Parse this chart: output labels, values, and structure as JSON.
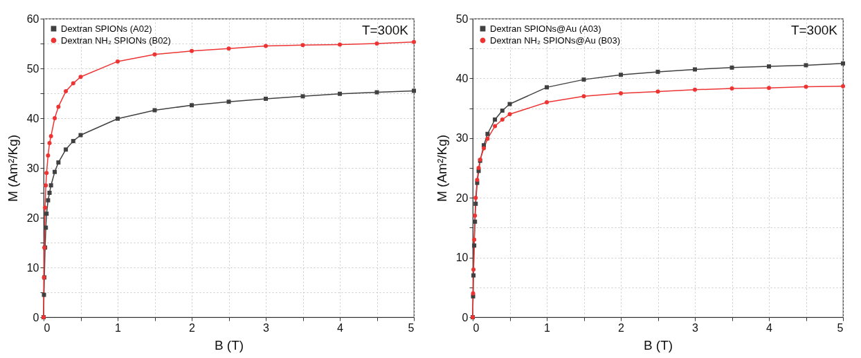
{
  "chart_data": [
    {
      "type": "line",
      "xlabel": "B (T)",
      "ylabel": "M (Am²/Kg)",
      "annotations": [
        "T=300K"
      ],
      "legend": "top left",
      "grid": true,
      "line_style": "solid",
      "xlim": [
        0,
        5
      ],
      "xticks": [
        0,
        {
          "value": 0.5,
          "label": null
        },
        1,
        {
          "value": 1.5,
          "label": null
        },
        2,
        {
          "value": 2.5,
          "label": null
        },
        3,
        {
          "value": 3.5,
          "label": null
        },
        4,
        {
          "value": 4.5,
          "label": null
        },
        5
      ],
      "ylim": [
        0,
        60
      ],
      "yticks": [
        0,
        {
          "value": 5,
          "label": null
        },
        10,
        {
          "value": 15,
          "label": null
        },
        20,
        {
          "value": 25,
          "label": null
        },
        30,
        {
          "value": 35,
          "label": null
        },
        40,
        {
          "value": 45,
          "label": null
        },
        50,
        {
          "value": 55,
          "label": null
        },
        60
      ],
      "x": [
        0,
        0.005,
        0.01,
        0.02,
        0.03,
        0.04,
        0.06,
        0.08,
        0.1,
        0.15,
        0.2,
        0.3,
        0.4,
        0.5,
        1,
        1.5,
        2,
        2.5,
        3,
        3.5,
        4,
        4.5,
        5
      ],
      "series": [
        {
          "name": "Dextran SPIONs (A02)",
          "color": "#404040",
          "marker": "square",
          "values": [
            0,
            4.5,
            8,
            14,
            18,
            20.8,
            23.5,
            25,
            26.5,
            29.2,
            31.1,
            33.7,
            35.4,
            36.6,
            39.9,
            41.6,
            42.6,
            43.3,
            43.9,
            44.4,
            44.9,
            45.2,
            45.5
          ]
        },
        {
          "name": "Dextran NH₂ SPIONs (B02)",
          "color": "#ee3333",
          "marker": "circle",
          "values": [
            0,
            8,
            14,
            22,
            26.5,
            29,
            32.5,
            35,
            36.4,
            40,
            42.3,
            45.4,
            47,
            48.3,
            51.4,
            52.8,
            53.5,
            54,
            54.5,
            54.7,
            54.8,
            55,
            55.3
          ]
        }
      ]
    },
    {
      "type": "line",
      "xlabel": "B (T)",
      "ylabel": "M (Am²/Kg)",
      "annotations": [
        "T=300K"
      ],
      "legend": "top left",
      "grid": true,
      "line_style": "solid",
      "xlim": [
        0,
        5
      ],
      "xticks": [
        0,
        {
          "value": 0.5,
          "label": null
        },
        1,
        {
          "value": 1.5,
          "label": null
        },
        2,
        {
          "value": 2.5,
          "label": null
        },
        3,
        {
          "value": 3.5,
          "label": null
        },
        4,
        {
          "value": 4.5,
          "label": null
        },
        5
      ],
      "ylim": [
        0,
        50
      ],
      "yticks": [
        0,
        {
          "value": 5,
          "label": null
        },
        10,
        {
          "value": 15,
          "label": null
        },
        20,
        {
          "value": 25,
          "label": null
        },
        30,
        {
          "value": 35,
          "label": null
        },
        40,
        {
          "value": 45,
          "label": null
        },
        50
      ],
      "x": [
        0,
        0.005,
        0.01,
        0.02,
        0.03,
        0.04,
        0.06,
        0.08,
        0.1,
        0.15,
        0.2,
        0.3,
        0.4,
        0.5,
        1,
        1.5,
        2,
        2.5,
        3,
        3.5,
        4,
        4.5,
        5
      ],
      "series": [
        {
          "name": "Dextran SPIONs@Au (A03)",
          "color": "#404040",
          "marker": "square",
          "values": [
            0,
            3.5,
            7,
            12,
            16,
            19,
            22.5,
            24.5,
            26.2,
            28.8,
            30.7,
            33.1,
            34.6,
            35.7,
            38.5,
            39.8,
            40.6,
            41.1,
            41.5,
            41.8,
            42,
            42.2,
            42.5
          ]
        },
        {
          "name": "Dextran NH₂ SPIONs@Au (B03)",
          "color": "#ee3333",
          "marker": "circle",
          "values": [
            0,
            4,
            8,
            13,
            17,
            20,
            23,
            25,
            26.4,
            28.3,
            29.9,
            32,
            33.1,
            34,
            36,
            37,
            37.5,
            37.8,
            38.1,
            38.3,
            38.4,
            38.6,
            38.7
          ]
        }
      ]
    }
  ]
}
